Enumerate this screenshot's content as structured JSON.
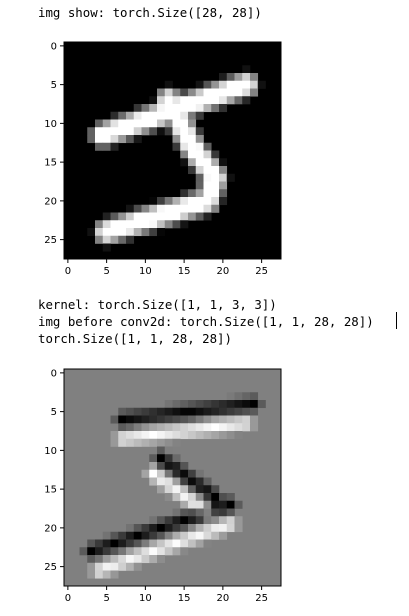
{
  "output": {
    "line1": "img show: torch.Size([28, 28])",
    "line2": "kernel: torch.Size([1, 1, 3, 3])",
    "line3": "img before conv2d: torch.Size([1, 1, 28, 28])",
    "line4": "torch.Size([1, 1, 28, 28])"
  },
  "colors": {
    "background_top": "#000000",
    "background_bottom": "#808080",
    "stroke": "#ffffff",
    "edge_dark": "#000000"
  },
  "chart_data": [
    {
      "type": "heatmap",
      "title": "",
      "xlabel": "",
      "ylabel": "",
      "xlim": [
        -0.5,
        27.5
      ],
      "ylim": [
        27.5,
        -0.5
      ],
      "xticks": [
        0,
        5,
        10,
        15,
        20,
        25
      ],
      "yticks": [
        0,
        5,
        10,
        15,
        20,
        25
      ],
      "colormap": "gray",
      "background_value": 0,
      "strokes": [
        {
          "from": [
            4.5,
            11.5
          ],
          "to": [
            23.0,
            5.0
          ],
          "width": 2.2
        },
        {
          "from": [
            13.0,
            7.0
          ],
          "to": [
            16.0,
            13.0
          ],
          "width": 2.2
        },
        {
          "from": [
            16.0,
            13.0
          ],
          "to": [
            19.0,
            17.0
          ],
          "width": 2.2
        },
        {
          "from": [
            19.0,
            17.0
          ],
          "to": [
            18.0,
            20.0
          ],
          "width": 2.2
        },
        {
          "from": [
            18.0,
            20.0
          ],
          "to": [
            5.0,
            24.0
          ],
          "width": 2.2
        }
      ]
    },
    {
      "type": "heatmap",
      "title": "",
      "xlabel": "",
      "ylabel": "",
      "xlim": [
        -0.5,
        27.5
      ],
      "ylim": [
        27.5,
        -0.5
      ],
      "xticks": [
        0,
        5,
        10,
        15,
        20,
        25
      ],
      "yticks": [
        0,
        5,
        10,
        15,
        20,
        25
      ],
      "colormap": "gray",
      "background_value": 0.5,
      "strokes": [
        {
          "from": [
            7.0,
            6.0
          ],
          "to": [
            24.0,
            4.0
          ],
          "width": 1.4
        },
        {
          "from": [
            7.0,
            8.5
          ],
          "to": [
            23.0,
            6.5
          ],
          "width": 1.4
        },
        {
          "from": [
            12.0,
            11.0
          ],
          "to": [
            19.0,
            16.0
          ],
          "width": 1.4
        },
        {
          "from": [
            11.0,
            13.0
          ],
          "to": [
            18.0,
            18.0
          ],
          "width": 1.4
        },
        {
          "from": [
            21.0,
            17.0
          ],
          "to": [
            3.0,
            23.0
          ],
          "width": 1.4
        },
        {
          "from": [
            21.0,
            19.5
          ],
          "to": [
            4.0,
            25.5
          ],
          "width": 1.4
        }
      ]
    }
  ]
}
